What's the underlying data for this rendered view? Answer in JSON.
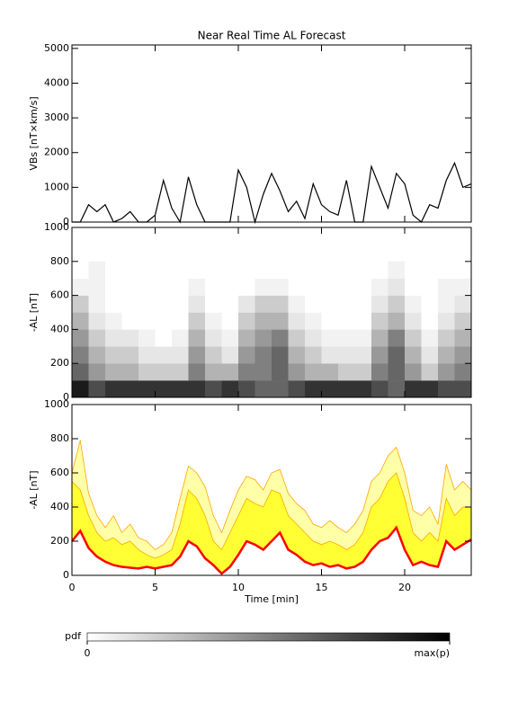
{
  "chart_data": [
    {
      "type": "line",
      "title": "Near Real Time AL Forecast",
      "ylabel": "VBs [nT×km/s]",
      "x": [
        0,
        0.5,
        1,
        1.5,
        2,
        2.5,
        3,
        3.5,
        4,
        4.5,
        5,
        5.5,
        6,
        6.5,
        7,
        7.5,
        8,
        8.5,
        9,
        9.5,
        10,
        10.5,
        11,
        11.5,
        12,
        12.5,
        13,
        13.5,
        14,
        14.5,
        15,
        15.5,
        16,
        16.5,
        17,
        17.5,
        18,
        18.5,
        19,
        19.5,
        20,
        20.5,
        21,
        21.5,
        22,
        22.5,
        23,
        23.5,
        24
      ],
      "series": [
        {
          "color": "#000000",
          "values": [
            0,
            0,
            500,
            300,
            500,
            0,
            100,
            300,
            0,
            0,
            200,
            1200,
            400,
            0,
            1300,
            500,
            0,
            0,
            0,
            0,
            1500,
            1000,
            0,
            800,
            1400,
            900,
            300,
            600,
            100,
            1100,
            500,
            300,
            200,
            1200,
            0,
            0,
            1600,
            1000,
            400,
            1400,
            1100,
            200,
            0,
            500,
            400,
            1200,
            1700,
            1000,
            1100
          ]
        }
      ],
      "xlim": [
        0,
        24
      ],
      "xticks": [
        0,
        5,
        10,
        15,
        20
      ],
      "ylim": [
        0,
        5100
      ],
      "yticks": [
        0,
        1000,
        2000,
        3000,
        4000,
        5000
      ]
    },
    {
      "type": "heatmap",
      "ylabel": "-AL [nT]",
      "x_bins": [
        0,
        1,
        2,
        3,
        4,
        5,
        6,
        7,
        8,
        9,
        10,
        11,
        12,
        13,
        14,
        15,
        16,
        17,
        18,
        19,
        20,
        21,
        22,
        23,
        24
      ],
      "y_bins": [
        0,
        100,
        200,
        300,
        400,
        500,
        600,
        700,
        800
      ],
      "z": [
        [
          0.9,
          0.7,
          0.8,
          0.8,
          0.8,
          0.8,
          0.8,
          0.8,
          0.7,
          0.8,
          0.7,
          0.6,
          0.6,
          0.7,
          0.8,
          0.8,
          0.8,
          0.8,
          0.7,
          0.6,
          0.8,
          0.8,
          0.7,
          0.7
        ],
        [
          0.6,
          0.4,
          0.3,
          0.3,
          0.2,
          0.2,
          0.2,
          0.5,
          0.3,
          0.3,
          0.5,
          0.5,
          0.6,
          0.4,
          0.3,
          0.3,
          0.2,
          0.2,
          0.5,
          0.6,
          0.4,
          0.2,
          0.4,
          0.5
        ],
        [
          0.5,
          0.3,
          0.2,
          0.2,
          0.1,
          0.1,
          0.1,
          0.4,
          0.2,
          0.1,
          0.4,
          0.5,
          0.6,
          0.3,
          0.2,
          0.1,
          0.1,
          0.1,
          0.4,
          0.6,
          0.3,
          0.1,
          0.3,
          0.4
        ],
        [
          0.4,
          0.2,
          0.1,
          0.1,
          0.05,
          0,
          0.05,
          0.3,
          0.1,
          0.05,
          0.3,
          0.4,
          0.5,
          0.2,
          0.1,
          0.05,
          0.05,
          0.05,
          0.3,
          0.5,
          0.2,
          0.05,
          0.2,
          0.3
        ],
        [
          0.3,
          0.1,
          0.05,
          0,
          0,
          0,
          0,
          0.2,
          0.05,
          0,
          0.2,
          0.3,
          0.3,
          0.1,
          0.05,
          0,
          0,
          0,
          0.2,
          0.3,
          0.1,
          0,
          0.1,
          0.2
        ],
        [
          0.2,
          0.05,
          0,
          0,
          0,
          0,
          0,
          0.1,
          0,
          0,
          0.1,
          0.2,
          0.2,
          0.05,
          0,
          0,
          0,
          0,
          0.1,
          0.2,
          0.05,
          0,
          0.05,
          0.1
        ],
        [
          0.05,
          0.05,
          0,
          0,
          0,
          0,
          0,
          0.05,
          0,
          0,
          0,
          0.05,
          0.05,
          0,
          0,
          0,
          0,
          0,
          0.05,
          0.1,
          0,
          0,
          0.05,
          0.05
        ],
        [
          0,
          0.05,
          0,
          0,
          0,
          0,
          0,
          0,
          0,
          0,
          0,
          0,
          0,
          0,
          0,
          0,
          0,
          0,
          0,
          0.05,
          0,
          0,
          0,
          0
        ]
      ],
      "xlim": [
        0,
        24
      ],
      "xticks": [
        0,
        5,
        10,
        15,
        20
      ],
      "ylim": [
        0,
        1000
      ],
      "yticks": [
        0,
        200,
        400,
        600,
        800,
        1000
      ],
      "colorbar": {
        "label": "pdf",
        "colors": [
          "#ffffff",
          "#000000"
        ],
        "ticks": [
          0,
          {
            "value": 1,
            "label": "max(p)"
          }
        ]
      }
    },
    {
      "type": "band",
      "ylabel": "-AL [nT]",
      "xlabel": "Time [min]",
      "x": [
        0,
        0.5,
        1,
        1.5,
        2,
        2.5,
        3,
        3.5,
        4,
        4.5,
        5,
        5.5,
        6,
        6.5,
        7,
        7.5,
        8,
        8.5,
        9,
        9.5,
        10,
        10.5,
        11,
        11.5,
        12,
        12.5,
        13,
        13.5,
        14,
        14.5,
        15,
        15.5,
        16,
        16.5,
        17,
        17.5,
        18,
        18.5,
        19,
        19.5,
        20,
        20.5,
        21,
        21.5,
        22,
        22.5,
        23,
        23.5,
        24
      ],
      "series": [
        {
          "color": "#ffa500",
          "fill": "#ffffa8",
          "values": [
            600,
            790,
            480,
            350,
            280,
            350,
            250,
            300,
            220,
            200,
            150,
            180,
            250,
            450,
            640,
            600,
            520,
            350,
            250,
            380,
            500,
            580,
            560,
            500,
            600,
            620,
            480,
            420,
            380,
            300,
            280,
            320,
            280,
            250,
            300,
            380,
            550,
            600,
            700,
            750,
            600,
            380,
            350,
            400,
            300,
            650,
            500,
            550,
            500
          ]
        },
        {
          "color": "#ffa500",
          "fill": "#ffff33",
          "values": [
            550,
            500,
            350,
            250,
            200,
            220,
            180,
            200,
            150,
            120,
            100,
            120,
            150,
            300,
            500,
            450,
            350,
            200,
            150,
            250,
            350,
            450,
            420,
            400,
            500,
            480,
            350,
            300,
            250,
            200,
            180,
            200,
            180,
            150,
            180,
            250,
            400,
            450,
            550,
            600,
            450,
            250,
            200,
            250,
            200,
            450,
            350,
            400,
            400
          ]
        },
        {
          "color": "#ff0000",
          "values": [
            200,
            260,
            160,
            110,
            80,
            60,
            50,
            45,
            40,
            50,
            40,
            50,
            60,
            110,
            200,
            170,
            100,
            60,
            10,
            50,
            120,
            200,
            180,
            150,
            200,
            250,
            150,
            120,
            80,
            60,
            70,
            50,
            60,
            40,
            50,
            80,
            150,
            200,
            220,
            280,
            150,
            60,
            80,
            60,
            50,
            200,
            150,
            180,
            210
          ]
        }
      ],
      "xlim": [
        0,
        24
      ],
      "xticks": [
        0,
        5,
        10,
        15,
        20
      ],
      "ylim": [
        0,
        1000
      ],
      "yticks": [
        0,
        200,
        400,
        600,
        800,
        1000
      ]
    }
  ]
}
